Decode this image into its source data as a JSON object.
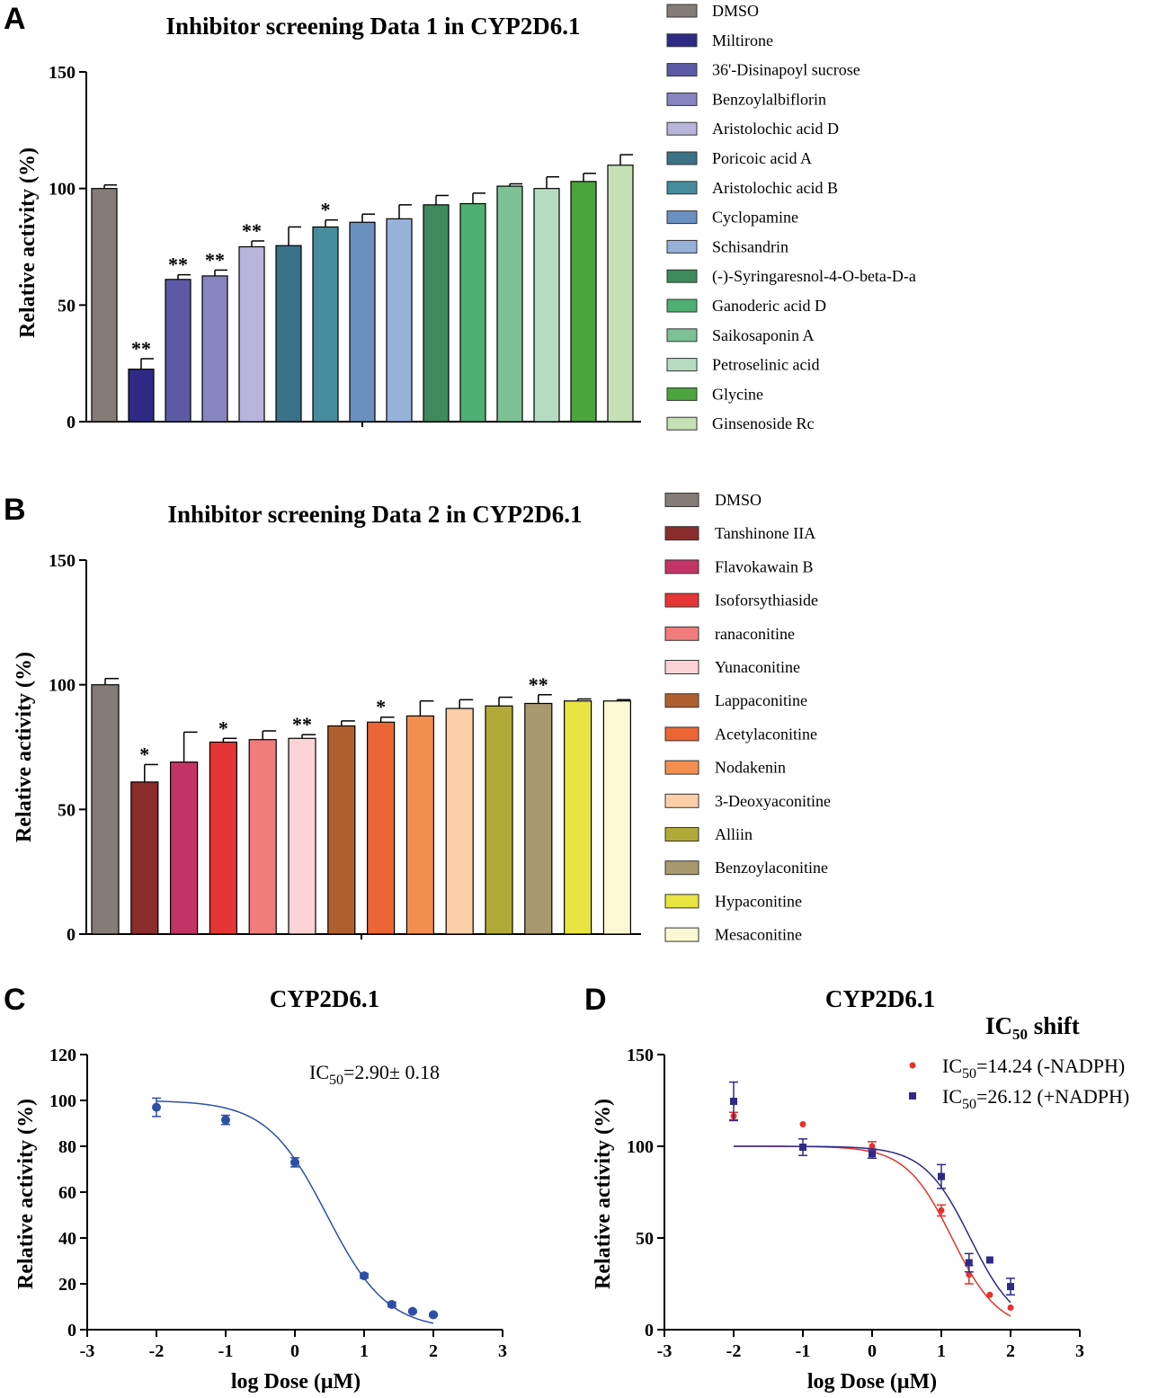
{
  "chart_data": [
    {
      "panel": "A",
      "type": "bar",
      "title": "Inhibitor screening Data 1 in CYP2D6.1",
      "ylabel": "Relative activity (%)",
      "xlabel": "",
      "ylim": [
        0,
        150
      ],
      "yticks": [
        0,
        50,
        100,
        150
      ],
      "categories": [
        "DMSO",
        "Miltirone",
        "36'-Disinapoyl sucrose",
        "Benzoylalbiflorin",
        "Aristolochic acid D",
        "Poricoic acid A",
        "Aristolochic acid B",
        "Cyclopamine",
        "Schisandrin",
        "(-)-Syringaresnol-4-O-beta-D-a",
        "Ganoderic acid D",
        "Saikosaponin A",
        "Petroselinic acid",
        "Glycine",
        "Ginsenoside Rc"
      ],
      "values": [
        100,
        22.5,
        61,
        62.5,
        75,
        75.5,
        83.5,
        85.5,
        87,
        93,
        93.5,
        101,
        100,
        103,
        110
      ],
      "errors": [
        1.5,
        4.5,
        2,
        2.5,
        2.5,
        8,
        3,
        3.5,
        6,
        4,
        4.5,
        1,
        5,
        3.5,
        4.5
      ],
      "significance": [
        "",
        "**",
        "**",
        "**",
        "**",
        "",
        "*",
        "",
        "",
        "",
        "",
        "",
        "",
        "",
        ""
      ],
      "colors": [
        "#857c78",
        "#2e2a86",
        "#5c5aa4",
        "#8784bf",
        "#b9b4dc",
        "#3a7287",
        "#468c9c",
        "#6a90c0",
        "#97b1da",
        "#3d8a5c",
        "#4faf73",
        "#7dc095",
        "#b5dcc1",
        "#4ca43c",
        "#c5e0b4"
      ],
      "legend_position": "right"
    },
    {
      "panel": "B",
      "type": "bar",
      "title": "Inhibitor screening Data 2 in CYP2D6.1",
      "ylabel": "Relative activity (%)",
      "xlabel": "",
      "ylim": [
        0,
        150
      ],
      "yticks": [
        0,
        50,
        100,
        150
      ],
      "categories": [
        "DMSO",
        "Tanshinone IIA",
        "Flavokawain B",
        "Isoforsythiaside",
        "ranaconitine",
        "Yunaconitine",
        "Lappaconitine",
        "Acetylaconitine",
        "Nodakenin",
        "3-Deoxyaconitine",
        "Alliin",
        "Benzoylaconitine",
        "Hypaconitine",
        "Mesaconitine"
      ],
      "values": [
        100,
        61,
        69,
        77,
        78,
        78.5,
        83.5,
        85,
        87.5,
        90.5,
        91.5,
        92.5,
        93.5,
        93.5
      ],
      "errors": [
        2.5,
        7,
        12,
        1.5,
        3.5,
        1.5,
        2,
        2,
        6,
        3.5,
        3.5,
        3.5,
        0.8,
        0.5
      ],
      "significance": [
        "",
        "*",
        "",
        "*",
        "",
        "**",
        "",
        "*",
        "",
        "",
        "",
        "**",
        "",
        ""
      ],
      "colors": [
        "#857c78",
        "#8b2c2c",
        "#c23466",
        "#e53535",
        "#f07c7c",
        "#fcd3d6",
        "#b0602e",
        "#ec6535",
        "#f28f4f",
        "#fdcfa8",
        "#b2aa38",
        "#a8996e",
        "#e7e443",
        "#fbf8d3"
      ],
      "legend_position": "right"
    },
    {
      "panel": "C",
      "type": "scatter",
      "title": "CYP2D6.1",
      "xlabel": "log Dose (μM)",
      "ylabel": "Relative activity (%)",
      "xlim": [
        -3,
        3
      ],
      "ylim": [
        0,
        120
      ],
      "xticks": [
        -3,
        -2,
        -1,
        0,
        1,
        2,
        3
      ],
      "yticks": [
        0,
        20,
        40,
        60,
        80,
        100,
        120
      ],
      "annotation_prefix": "IC",
      "annotation_sub": "50",
      "annotation_rest": "=2.90± 0.18",
      "series": [
        {
          "name": "CYP2D6.1",
          "color": "#2d4fa8",
          "x": [
            -2,
            -1,
            0,
            1,
            1.4,
            1.7,
            2
          ],
          "y": [
            97,
            91.5,
            73,
            23.5,
            11,
            8,
            6.5
          ],
          "err": [
            4,
            2,
            2,
            1,
            1,
            0.5,
            0.5
          ],
          "fit": {
            "top": 100,
            "bottom": 0,
            "log_ic50": 0.462,
            "hill": -1
          }
        }
      ]
    },
    {
      "panel": "D",
      "type": "scatter",
      "title": "CYP2D6.1",
      "xlabel": "log Dose (μM)",
      "ylabel": "Relative activity (%)",
      "xlim": [
        -3,
        3
      ],
      "ylim": [
        0,
        150
      ],
      "xticks": [
        -3,
        -2,
        -1,
        0,
        1,
        2,
        3
      ],
      "yticks": [
        0,
        50,
        100,
        150
      ],
      "legend_title": "IC",
      "legend_title_sub": "50",
      "legend_title_rest": " shift",
      "series": [
        {
          "name": "-NADPH",
          "label_prefix": "IC",
          "label_sub": "50",
          "label_rest": "=14.24 (-NADPH)",
          "color": "#e8312a",
          "marker": "circle",
          "x": [
            -2,
            -1,
            0,
            1,
            1.4,
            1.7,
            2
          ],
          "y": [
            116.5,
            112,
            100,
            65,
            30,
            19,
            12
          ],
          "err": [
            2,
            0,
            2.5,
            3,
            5,
            0,
            0
          ],
          "fit": {
            "top": 100,
            "bottom": 0,
            "log_ic50": 1.154,
            "hill": -1.3
          }
        },
        {
          "name": "+NADPH",
          "label_prefix": "IC",
          "label_sub": "50",
          "label_rest": "=26.12 (+NADPH)",
          "color": "#2e2a86",
          "marker": "square",
          "x": [
            -2,
            -1,
            0,
            1,
            1.4,
            1.7,
            2
          ],
          "y": [
            124.5,
            99.5,
            96,
            83.5,
            36.5,
            38,
            23.5
          ],
          "err": [
            10.5,
            4.5,
            2.5,
            6.5,
            5,
            0,
            4.5
          ],
          "fit": {
            "top": 100,
            "bottom": 0,
            "log_ic50": 1.417,
            "hill": -1.3
          }
        }
      ]
    }
  ],
  "panels": {
    "A": {
      "letter": "A"
    },
    "B": {
      "letter": "B"
    },
    "C": {
      "letter": "C"
    },
    "D": {
      "letter": "D"
    }
  }
}
